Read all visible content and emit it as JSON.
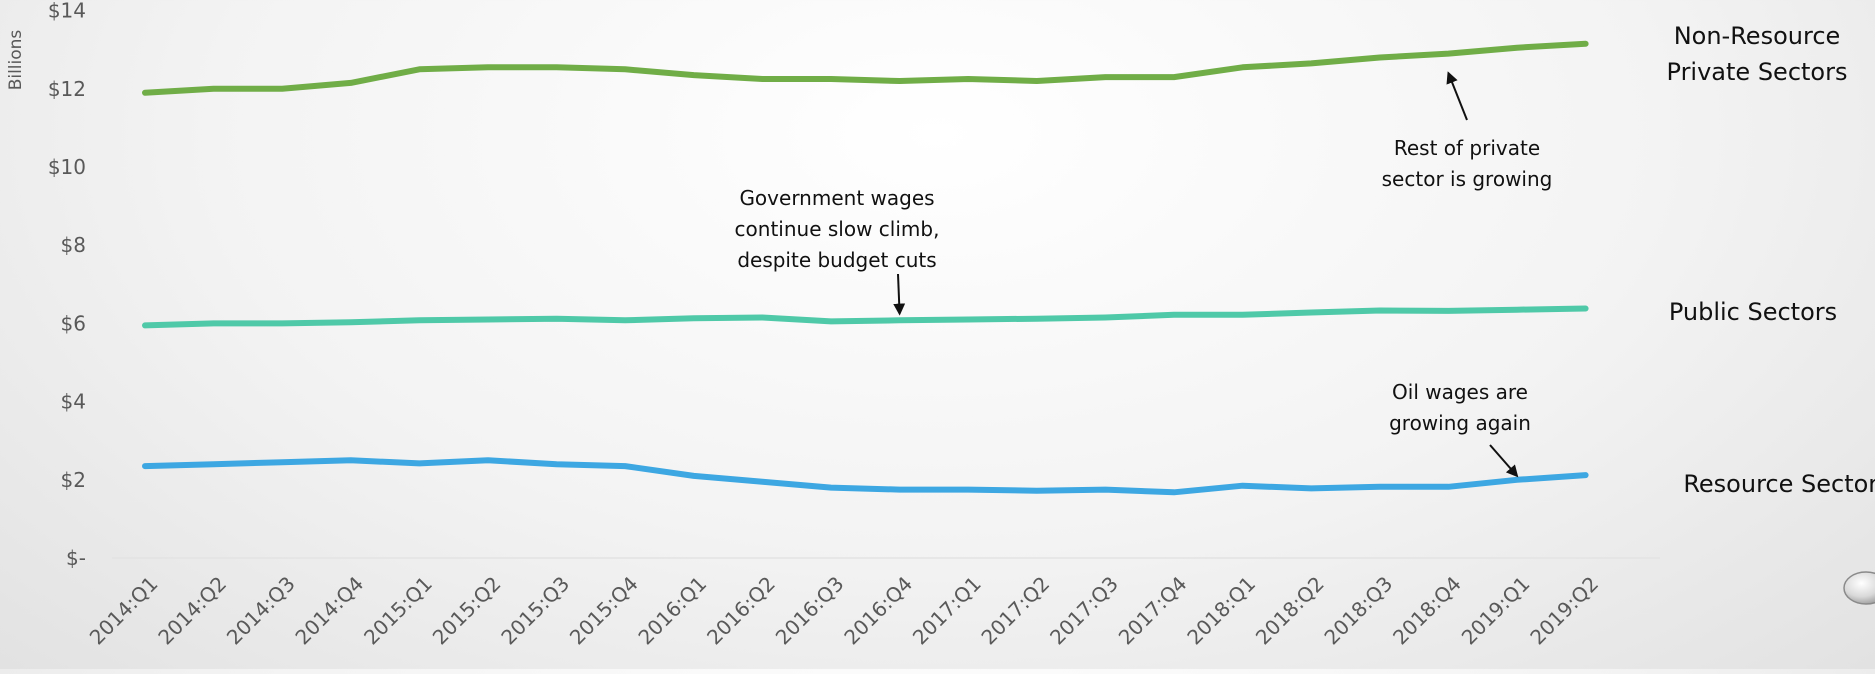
{
  "chart_data": {
    "type": "line",
    "ylabel": "Billions",
    "ylim": [
      0,
      14
    ],
    "y_ticks": [
      "$-",
      "$2",
      "$4",
      "$6",
      "$8",
      "$10",
      "$12",
      "$14"
    ],
    "y_tick_values": [
      0,
      2,
      4,
      6,
      8,
      10,
      12,
      14
    ],
    "categories": [
      "2014:Q1",
      "2014:Q2",
      "2014:Q3",
      "2014:Q4",
      "2015:Q1",
      "2015:Q2",
      "2015:Q3",
      "2015:Q4",
      "2016:Q1",
      "2016:Q2",
      "2016:Q3",
      "2016:Q4",
      "2017:Q1",
      "2017:Q2",
      "2017:Q3",
      "2017:Q4",
      "2018:Q1",
      "2018:Q2",
      "2018:Q3",
      "2018:Q4",
      "2019:Q1",
      "2019:Q2"
    ],
    "grid": false,
    "series": [
      {
        "name": "Non-Resource Private Sectors",
        "label_lines": [
          "Non-Resource",
          "Private Sectors"
        ],
        "color": "#70ad47",
        "values": [
          11.9,
          12.0,
          12.0,
          12.15,
          12.5,
          12.55,
          12.55,
          12.5,
          12.35,
          12.25,
          12.25,
          12.2,
          12.25,
          12.2,
          12.3,
          12.3,
          12.55,
          12.65,
          12.8,
          12.9,
          13.05,
          13.15
        ]
      },
      {
        "name": "Public Sectors",
        "label_lines": [
          "Public Sectors"
        ],
        "color": "#4fc9a8",
        "values": [
          5.95,
          6.0,
          6.0,
          6.03,
          6.08,
          6.1,
          6.12,
          6.08,
          6.13,
          6.15,
          6.05,
          6.08,
          6.1,
          6.12,
          6.15,
          6.22,
          6.22,
          6.28,
          6.33,
          6.32,
          6.35,
          6.38
        ]
      },
      {
        "name": "Resource Sectors",
        "label_lines": [
          "Resource Sectors"
        ],
        "color": "#3da7e2",
        "values": [
          2.35,
          2.4,
          2.45,
          2.5,
          2.42,
          2.5,
          2.4,
          2.35,
          2.1,
          1.95,
          1.8,
          1.75,
          1.75,
          1.72,
          1.75,
          1.68,
          1.85,
          1.78,
          1.82,
          1.82,
          2.0,
          2.12
        ]
      }
    ],
    "annotations": [
      {
        "lines": [
          "Government wages",
          "continue slow climb,",
          "despite budget cuts"
        ],
        "arrow_to": {
          "category": "2016:Q4",
          "value": 6.25
        }
      },
      {
        "lines": [
          "Rest of private",
          "sector is growing"
        ],
        "arrow_to": {
          "category": "2018:Q4",
          "value": 12.4
        }
      },
      {
        "lines": [
          "Oil wages are",
          "growing again"
        ],
        "arrow_to": {
          "category": "2019:Q1",
          "value": 2.1
        }
      }
    ]
  }
}
